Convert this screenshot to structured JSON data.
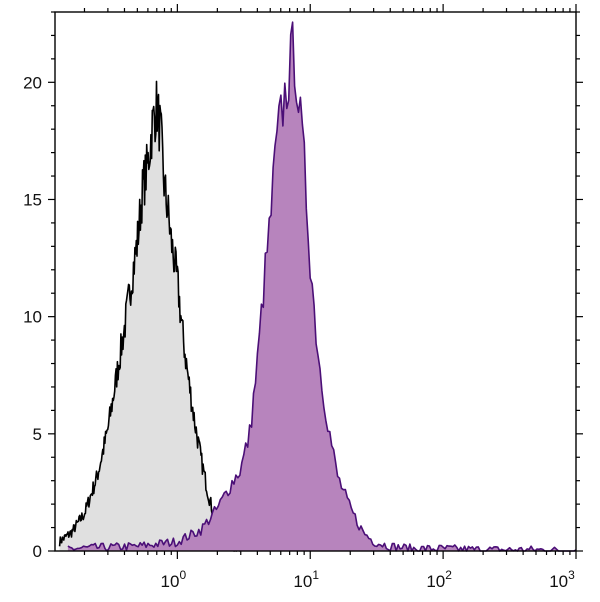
{
  "chart_data": {
    "type": "area",
    "title": "",
    "xlabel": "",
    "ylabel": "",
    "x_scale": "log",
    "xlim": [
      0.12,
      1000
    ],
    "ylim": [
      0,
      23
    ],
    "grid": false,
    "legend": "none",
    "x_ticks": [
      {
        "value": 1,
        "base": "10",
        "exp": "0"
      },
      {
        "value": 10,
        "base": "10",
        "exp": "1"
      },
      {
        "value": 100,
        "base": "10",
        "exp": "2"
      },
      {
        "value": 1000,
        "base": "10",
        "exp": "3"
      }
    ],
    "y_ticks": [
      {
        "value": 0,
        "label": "0"
      },
      {
        "value": 5,
        "label": "5"
      },
      {
        "value": 10,
        "label": "10"
      },
      {
        "value": 15,
        "label": "15"
      },
      {
        "value": 20,
        "label": "20"
      }
    ],
    "series": [
      {
        "fill": "#e0e0e0",
        "stroke": "#000000",
        "x": [
          0.13,
          0.16,
          0.2,
          0.25,
          0.3,
          0.35,
          0.4,
          0.45,
          0.5,
          0.55,
          0.6,
          0.65,
          0.7,
          0.75,
          0.8,
          0.85,
          0.9,
          1.0,
          1.1,
          1.2,
          1.35,
          1.5,
          1.7,
          1.9,
          2.2,
          2.5,
          3.0
        ],
        "y": [
          0.4,
          0.8,
          1.6,
          3.2,
          5.2,
          7.5,
          9.5,
          11.5,
          13.2,
          15.5,
          16.5,
          18.2,
          19.0,
          17.8,
          15.5,
          14.5,
          13.2,
          11.5,
          9.2,
          7.5,
          5.5,
          4.0,
          2.5,
          1.4,
          0.6,
          0.2,
          0.0
        ]
      },
      {
        "fill": "#b784bd",
        "stroke": "#4b0f77",
        "x": [
          0.15,
          0.5,
          1.0,
          1.5,
          2.0,
          2.5,
          3.0,
          3.5,
          4.0,
          4.5,
          5.0,
          5.5,
          6.0,
          6.5,
          7.0,
          7.5,
          8.0,
          8.5,
          9.0,
          10.0,
          11.0,
          12.0,
          14.0,
          16.0,
          20.0,
          25.0,
          30.0,
          40.0,
          60.0,
          100.0,
          200.0,
          500.0,
          1000.0
        ],
        "y": [
          0.1,
          0.2,
          0.4,
          0.9,
          1.8,
          2.8,
          3.5,
          5.0,
          8.0,
          11.5,
          14.0,
          17.0,
          18.5,
          19.5,
          20.5,
          21.5,
          20.0,
          18.0,
          16.5,
          12.5,
          9.5,
          7.5,
          5.0,
          3.2,
          1.8,
          0.8,
          0.4,
          0.2,
          0.1,
          0.1,
          0.05,
          0.05,
          0.0
        ]
      }
    ]
  }
}
